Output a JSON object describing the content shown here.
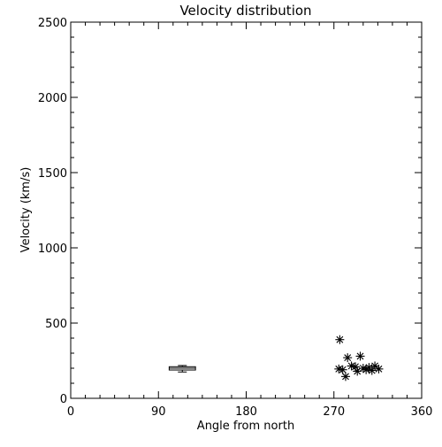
{
  "chart_data": {
    "type": "scatter",
    "title": "Velocity distribution",
    "xlabel": "Angle from north",
    "ylabel": "Velocity (km/s)",
    "xlim": [
      0,
      360
    ],
    "ylim": [
      0,
      2500
    ],
    "x_ticks": [
      0,
      90,
      180,
      270,
      360
    ],
    "y_ticks": [
      0,
      500,
      1000,
      1500,
      2000,
      2500
    ],
    "grid": false,
    "series": [
      {
        "marker": "asterisk",
        "color": "#000000",
        "points": [
          {
            "x": 276,
            "y": 390
          },
          {
            "x": 275,
            "y": 195
          },
          {
            "x": 279,
            "y": 190
          },
          {
            "x": 284,
            "y": 270
          },
          {
            "x": 282,
            "y": 145
          },
          {
            "x": 288,
            "y": 215
          },
          {
            "x": 292,
            "y": 210
          },
          {
            "x": 294,
            "y": 180
          },
          {
            "x": 297,
            "y": 280
          },
          {
            "x": 300,
            "y": 200
          },
          {
            "x": 303,
            "y": 190
          },
          {
            "x": 306,
            "y": 205
          },
          {
            "x": 309,
            "y": 185
          },
          {
            "x": 312,
            "y": 215
          },
          {
            "x": 316,
            "y": 195
          }
        ]
      }
    ],
    "box": {
      "x_min": 101,
      "x_max": 128,
      "q1": 188,
      "median": 200,
      "q3": 210,
      "whisker_low": 175,
      "whisker_high": 218,
      "color": "#000000"
    }
  }
}
